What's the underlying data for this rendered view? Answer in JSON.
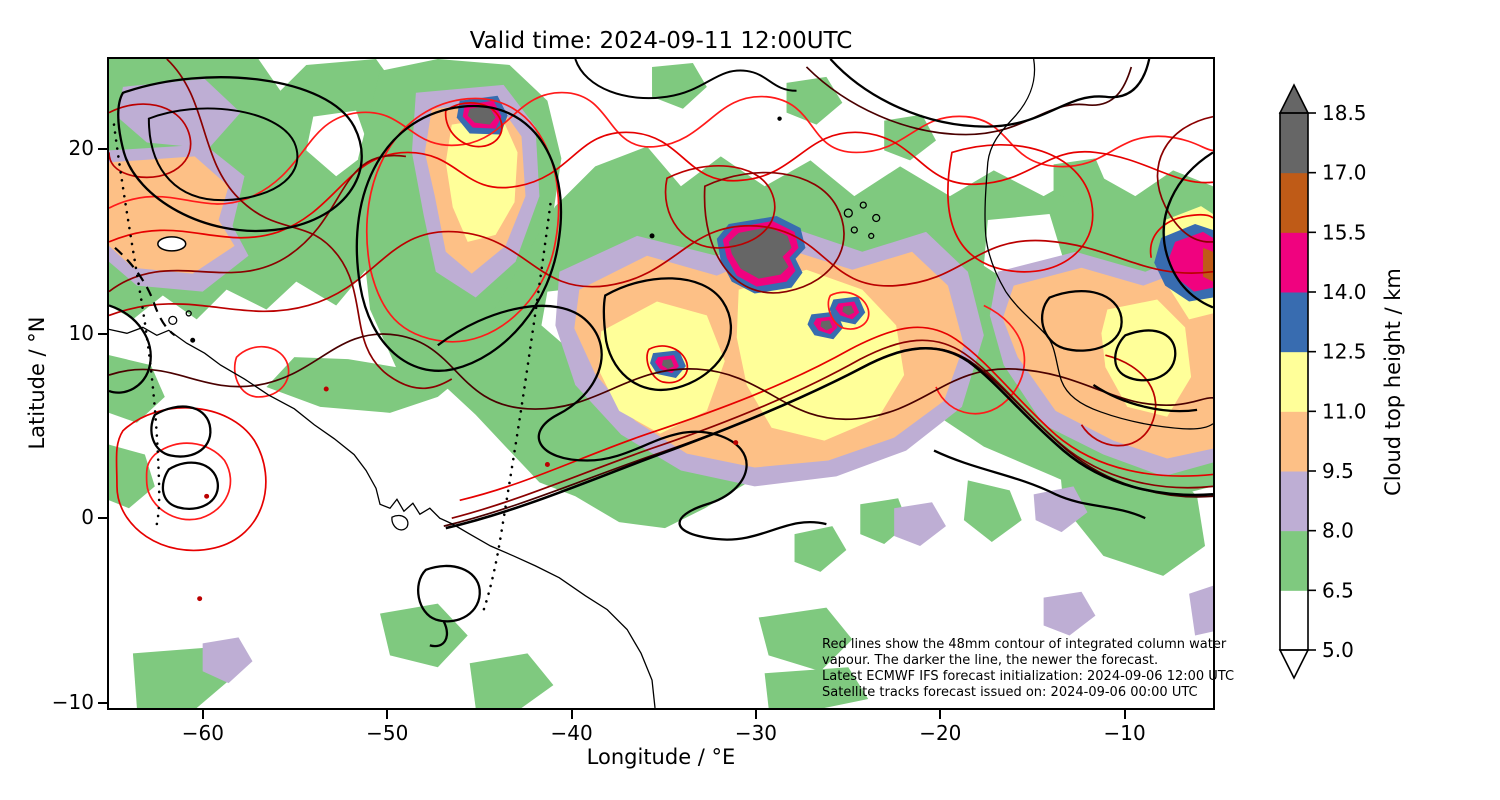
{
  "figure": {
    "title": "Valid time: 2024-09-11 12:00UTC"
  },
  "axes": {
    "xlabel": "Longitude / °E",
    "ylabel": "Latitude / °N",
    "x_tick_labels": [
      "−60",
      "−50",
      "−40",
      "−30",
      "−20",
      "−10"
    ],
    "x_tick_values": [
      -60,
      -50,
      -40,
      -30,
      -20,
      -10
    ],
    "y_tick_labels": [
      "20",
      "10",
      "0",
      "−10"
    ],
    "y_tick_values": [
      20,
      10,
      0,
      -10
    ],
    "xlim": [
      -65.2,
      -5.1
    ],
    "ylim": [
      -10.4,
      25.0
    ]
  },
  "colorbar": {
    "label": "Cloud top height / km",
    "ticks_top_to_bottom": [
      "18.5",
      "17.0",
      "15.5",
      "14.0",
      "12.5",
      "11.0",
      "9.5",
      "8.0",
      "6.5",
      "5.0"
    ],
    "bands_bottom_to_top": [
      {
        "key": "white",
        "range": [
          5.0,
          6.5
        ],
        "color": "#ffffff"
      },
      {
        "key": "green",
        "range": [
          6.5,
          8.0
        ],
        "color": "#7fc97f"
      },
      {
        "key": "purple",
        "range": [
          8.0,
          9.5
        ],
        "color": "#beaed4"
      },
      {
        "key": "orange",
        "range": [
          9.5,
          11.0
        ],
        "color": "#fdc086"
      },
      {
        "key": "yellow",
        "range": [
          11.0,
          12.5
        ],
        "color": "#ffff99"
      },
      {
        "key": "blue",
        "range": [
          12.5,
          14.0
        ],
        "color": "#386cb0"
      },
      {
        "key": "magenta",
        "range": [
          14.0,
          15.5
        ],
        "color": "#f0027f"
      },
      {
        "key": "brown",
        "range": [
          15.5,
          17.0
        ],
        "color": "#bf5b17"
      },
      {
        "key": "grey",
        "range": [
          17.0,
          18.5
        ],
        "color": "#666666"
      }
    ],
    "extend_over_color": "#666666",
    "extend_under_color": "#ffffff"
  },
  "annotation": {
    "lines": [
      "Red lines show the 48mm contour of integrated column water",
      "vapour. The darker the line, the newer the forecast.",
      "Latest ECMWF IFS forecast initialization: 2024-09-06 12:00 UTC",
      "Satellite tracks forecast issued on: 2024-09-06 00:00 UTC"
    ]
  },
  "contours": {
    "icwv_threshold": "48mm",
    "red_shades_old_to_new": [
      "#ff1a1a",
      "#e60000",
      "#bb0000",
      "#8b0000",
      "#4a0000"
    ],
    "black_contour_color": "#000000",
    "coastline_color": "#000000",
    "satellite_track_style": "black dotted"
  },
  "chart_data": {
    "type": "heatmap",
    "title": "Valid time: 2024-09-11 12:00UTC",
    "xlabel": "Longitude / °E",
    "ylabel": "Latitude / °N",
    "xlim": [
      -65.2,
      -5.1
    ],
    "ylim": [
      -10.4,
      25.0
    ],
    "x_ticks": [
      -60,
      -50,
      -40,
      -30,
      -20,
      -10
    ],
    "y_ticks": [
      20,
      10,
      0,
      -10
    ],
    "grid": false,
    "colorbar_label": "Cloud top height / km",
    "levels_km": [
      5.0,
      6.5,
      8.0,
      9.5,
      11.0,
      12.5,
      14.0,
      15.5,
      17.0,
      18.5
    ],
    "palette": [
      "#ffffff",
      "#7fc97f",
      "#beaed4",
      "#fdc086",
      "#ffff99",
      "#386cb0",
      "#f0027f",
      "#bf5b17",
      "#666666"
    ],
    "features": [
      {
        "name": "storm-core-west",
        "lon": -45.0,
        "lat": 21.8,
        "cloud_top_km": "17.0-18.5",
        "note": "small grey core ringed by magenta, blue, yellow and orange"
      },
      {
        "name": "large-overshooting-core",
        "lon": -29.5,
        "lat": 14.8,
        "cloud_top_km": "17.0-18.5",
        "note": "largest grey blob with magenta and blue rings inside broad yellow shield"
      },
      {
        "name": "small-core-a",
        "lon": -24.8,
        "lat": 11.3,
        "cloud_top_km": "17.0-18.5"
      },
      {
        "name": "small-core-b",
        "lon": -26.0,
        "lat": 10.5,
        "cloud_top_km": "17.0-18.5"
      },
      {
        "name": "small-core-c",
        "lon": -34.7,
        "lat": 8.3,
        "cloud_top_km": "17.0-18.5"
      },
      {
        "name": "system-near-african-coast",
        "lon": -6.0,
        "lat": 13.5,
        "cloud_top_km": "14.0-15.5",
        "note": "magenta/blue patch clipped by right axis"
      },
      {
        "name": "main-cloud-shield",
        "lon_range": [
          -41,
          -18
        ],
        "lat_range": [
          4,
          16
        ],
        "cloud_top_km": "9.5-12.5",
        "note": "broad orange/yellow shield fringed by purple then green"
      },
      {
        "name": "itcz-band",
        "lon_range": [
          -65,
          -5
        ],
        "lat_range": [
          -2,
          24
        ],
        "cloud_top_km": "6.5-8.0",
        "note": "extensive scattered green field"
      }
    ]
  }
}
